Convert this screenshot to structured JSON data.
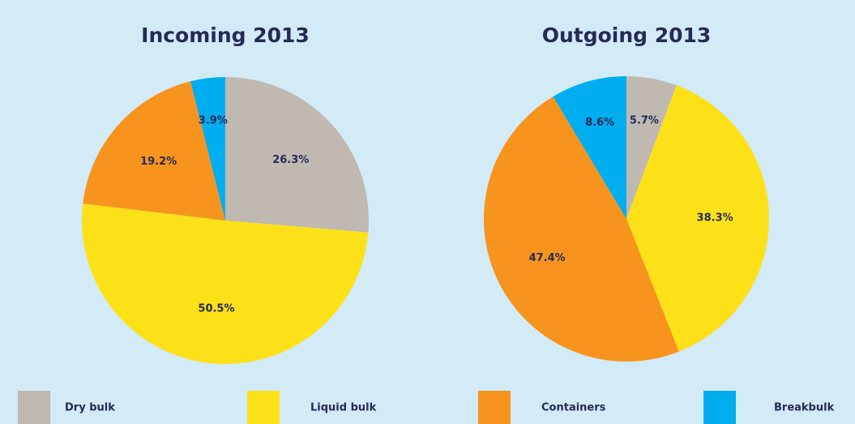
{
  "chart_data": [
    {
      "type": "pie",
      "title": "Incoming 2013",
      "categories": [
        "Dry bulk",
        "Liquid bulk",
        "Containers",
        "Breakbulk"
      ],
      "values": [
        26.3,
        50.5,
        19.2,
        3.9
      ],
      "value_labels": [
        "26.3%",
        "50.5%",
        "19.2%",
        "3.9%"
      ],
      "colors": [
        "#bfb9b2",
        "#fde118",
        "#f7941e",
        "#00aeef"
      ]
    },
    {
      "type": "pie",
      "title": "Outgoing 2013",
      "categories": [
        "Dry bulk",
        "Liquid bulk",
        "Containers",
        "Breakbulk"
      ],
      "values": [
        5.7,
        38.3,
        47.4,
        8.6
      ],
      "value_labels": [
        "5.7%",
        "38.3%",
        "47.4%",
        "8.6%"
      ],
      "colors": [
        "#bfb9b2",
        "#fde118",
        "#f7941e",
        "#00aeef"
      ]
    }
  ]
}
